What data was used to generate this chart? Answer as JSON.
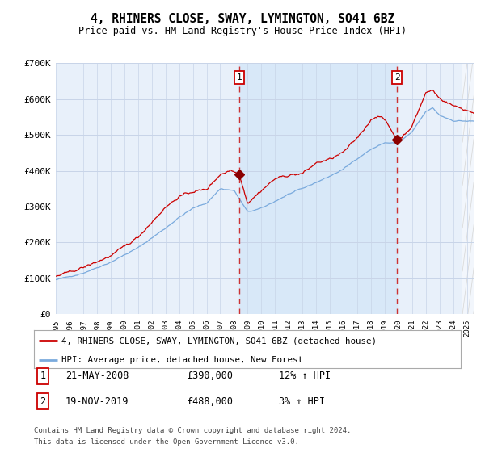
{
  "title": "4, RHINERS CLOSE, SWAY, LYMINGTON, SO41 6BZ",
  "subtitle": "Price paid vs. HM Land Registry's House Price Index (HPI)",
  "ylim": [
    0,
    700000
  ],
  "yticks": [
    0,
    100000,
    200000,
    300000,
    400000,
    500000,
    600000,
    700000
  ],
  "ytick_labels": [
    "£0",
    "£100K",
    "£200K",
    "£300K",
    "£400K",
    "£500K",
    "£600K",
    "£700K"
  ],
  "background_color": "#ffffff",
  "plot_bg_color": "#e8f0fa",
  "grid_color": "#c8d4e8",
  "red_line_color": "#cc0000",
  "blue_line_color": "#7aaadd",
  "shade_color": "#d8e8f8",
  "purchase1_x": 2008.39,
  "purchase1_y": 390000,
  "purchase1_label": "1",
  "purchase1_date": "21-MAY-2008",
  "purchase1_price": "£390,000",
  "purchase1_hpi": "12% ↑ HPI",
  "purchase2_x": 2019.89,
  "purchase2_y": 488000,
  "purchase2_label": "2",
  "purchase2_date": "19-NOV-2019",
  "purchase2_price": "£488,000",
  "purchase2_hpi": "3% ↑ HPI",
  "legend_red": "4, RHINERS CLOSE, SWAY, LYMINGTON, SO41 6BZ (detached house)",
  "legend_blue": "HPI: Average price, detached house, New Forest",
  "footnote1": "Contains HM Land Registry data © Crown copyright and database right 2024.",
  "footnote2": "This data is licensed under the Open Government Licence v3.0.",
  "xmin": 1995.0,
  "xmax": 2025.5,
  "marker_color": "#8b0000"
}
